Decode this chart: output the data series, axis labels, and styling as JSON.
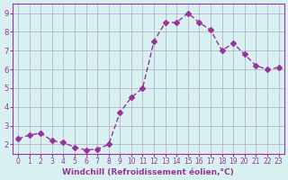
{
  "x": [
    0,
    1,
    2,
    3,
    4,
    5,
    6,
    7,
    8,
    9,
    10,
    11,
    12,
    13,
    14,
    15,
    16,
    17,
    18,
    19,
    20,
    21,
    22,
    23
  ],
  "y": [
    2.3,
    2.5,
    2.6,
    2.2,
    2.1,
    1.85,
    1.7,
    1.75,
    2.0,
    3.7,
    4.5,
    5.0,
    7.5,
    8.5,
    8.5,
    9.0,
    8.5,
    8.1,
    7.0,
    7.4,
    6.8,
    6.2,
    6.0,
    6.1
  ],
  "xlabel": "Windchill (Refroidissement éolien,°C)",
  "ylabel": "",
  "line_color": "#993399",
  "marker": "D",
  "marker_size": 3,
  "bg_color": "#d8f0f0",
  "grid_color": "#aaaacc",
  "axis_color": "#993399",
  "tick_color": "#993399",
  "ylim": [
    1.5,
    9.5
  ],
  "yticks": [
    2,
    3,
    4,
    5,
    6,
    7,
    8,
    9
  ],
  "xlim": [
    -0.5,
    23.5
  ],
  "xticks": [
    0,
    1,
    2,
    3,
    4,
    5,
    6,
    7,
    8,
    9,
    10,
    11,
    12,
    13,
    14,
    15,
    16,
    17,
    18,
    19,
    20,
    21,
    22,
    23
  ]
}
